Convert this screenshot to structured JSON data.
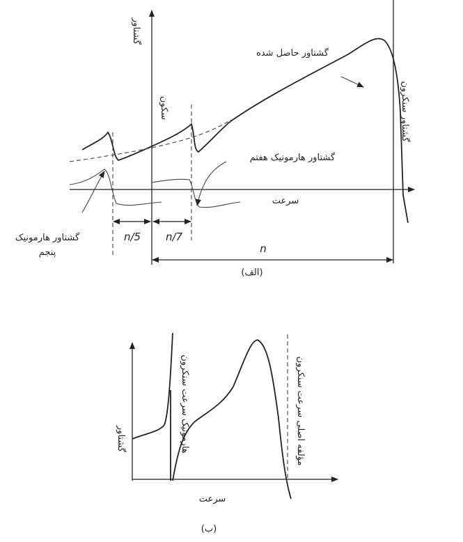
{
  "figure_a": {
    "y_axis_label": "گشتاور",
    "standstill_label": "سکون",
    "resultant_label": "گشتاور حاصل شده",
    "synchronous_label": "گشتاور سنکرون",
    "seventh_label": "گشتاور هارمونیک هفتم",
    "x_axis_label": "سرعت",
    "fifth_label": [
      "گشتاور هارمونیک",
      "پنجم"
    ],
    "dim_fifth": "n/5",
    "dim_seventh": "n/7",
    "dim_n": "n",
    "caption": "(الف)"
  },
  "figure_b": {
    "y_axis_label": "گشتاور",
    "harmonic_label": "هارمونیک سرعت سنکرون",
    "fundamental_label": "مؤلفه اصلی سرعت سنکرون",
    "x_axis_label": "سرعت",
    "caption": "(ب)"
  }
}
